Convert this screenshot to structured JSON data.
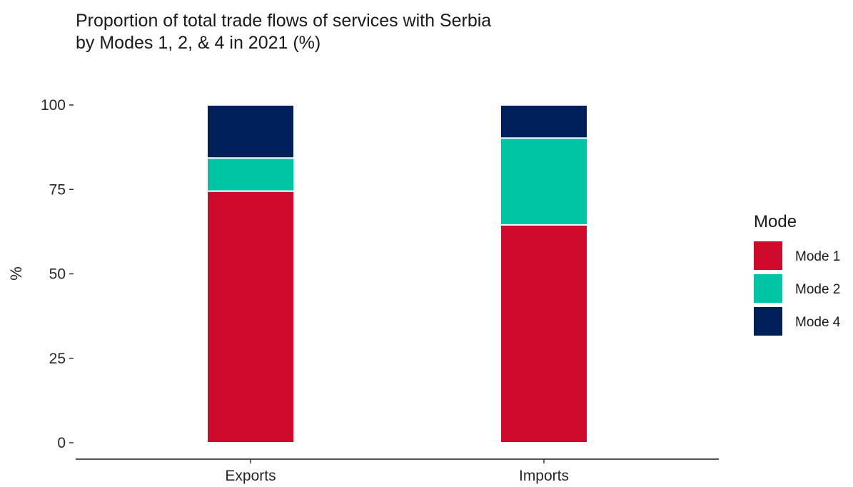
{
  "chart_data": {
    "type": "bar",
    "stacked": true,
    "title_lines": [
      "Proportion of total trade flows of services with Serbia",
      "by Modes 1, 2, & 4 in 2021 (%)"
    ],
    "xlabel": "",
    "ylabel": "%",
    "ylim": [
      0,
      100
    ],
    "yticks": [
      "0",
      "25",
      "50",
      "75",
      "100"
    ],
    "categories": [
      "Exports",
      "Imports"
    ],
    "series": [
      {
        "name": "Mode 1",
        "color": "#cf0a2c",
        "values": [
          74.5,
          64.5
        ]
      },
      {
        "name": "Mode 2",
        "color": "#00c5a5",
        "values": [
          9.8,
          25.7
        ]
      },
      {
        "name": "Mode 4",
        "color": "#00205b",
        "values": [
          15.7,
          9.8
        ]
      }
    ],
    "legend": {
      "title": "Mode",
      "position": "right"
    },
    "grid": false
  }
}
